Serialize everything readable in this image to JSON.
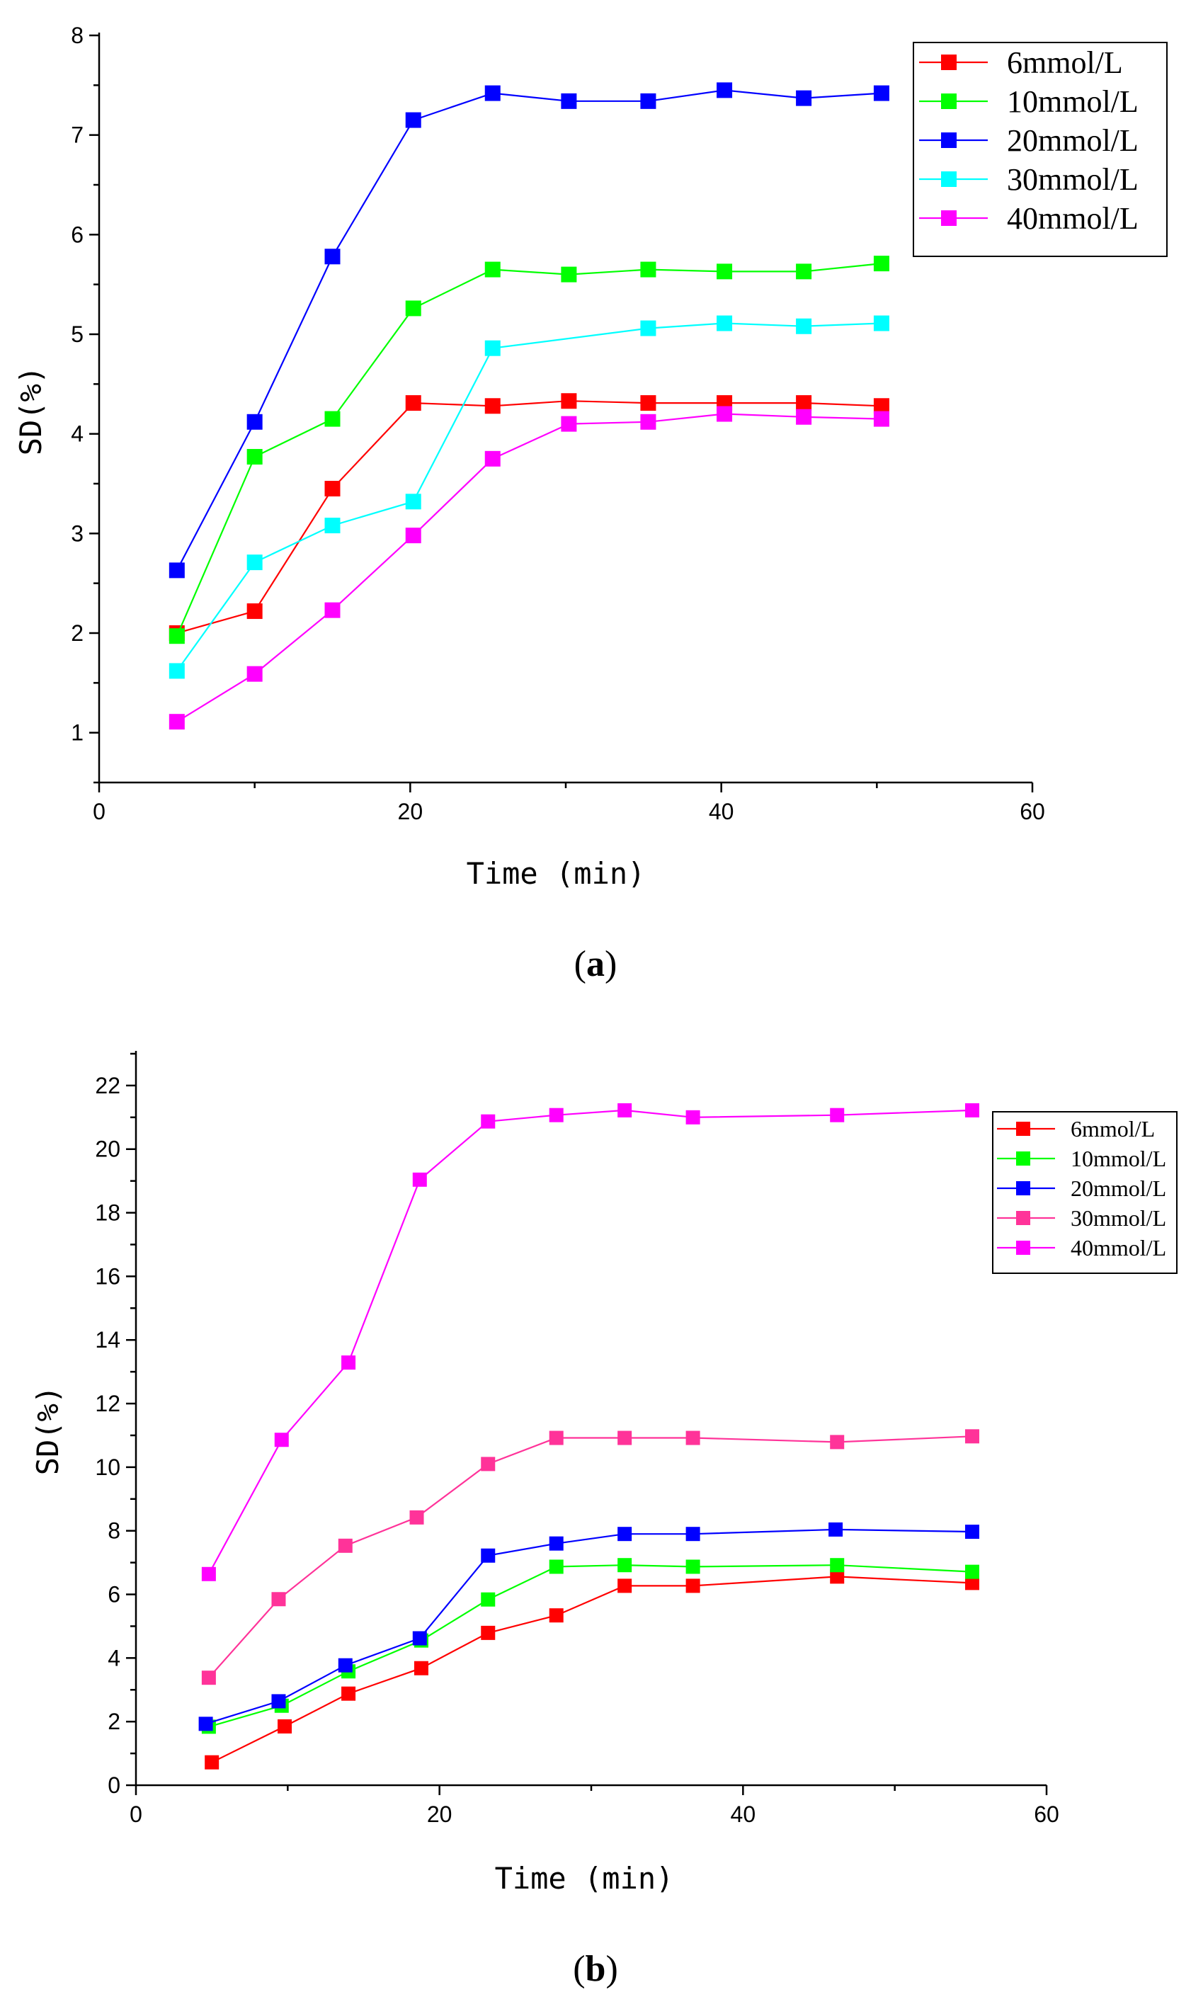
{
  "chart_data": [
    {
      "panel": "a",
      "caption_open": "(",
      "caption_letter": "a",
      "caption_close": ")",
      "type": "line",
      "title": "",
      "xlabel": "Time  (min)",
      "ylabel": "SD(%)",
      "xlim": [
        0,
        60
      ],
      "ylim": [
        0.5,
        8
      ],
      "xticks": [
        0,
        20,
        40,
        60
      ],
      "yticks": [
        1,
        2,
        3,
        4,
        5,
        6,
        7,
        8
      ],
      "legend_position": "top-right",
      "series": [
        {
          "name": "6mmol/L",
          "color": "#ff0000",
          "x": [
            5,
            10,
            15,
            20.2,
            25.3,
            30.2,
            35.3,
            40.2,
            45.3,
            50.3
          ],
          "y": [
            2.0,
            2.22,
            3.45,
            4.31,
            4.28,
            4.33,
            4.31,
            4.31,
            4.31,
            4.28
          ]
        },
        {
          "name": "10mmol/L",
          "color": "#00ff00",
          "x": [
            5,
            10,
            15,
            20.2,
            25.3,
            30.2,
            35.3,
            40.2,
            45.3,
            50.3
          ],
          "y": [
            1.97,
            3.77,
            4.15,
            5.26,
            5.65,
            5.6,
            5.65,
            5.63,
            5.63,
            5.71
          ]
        },
        {
          "name": "20mmol/L",
          "color": "#0000ff",
          "x": [
            5,
            10,
            15,
            20.2,
            25.3,
            30.2,
            35.3,
            40.2,
            45.3,
            50.3
          ],
          "y": [
            2.63,
            4.12,
            5.78,
            7.15,
            7.42,
            7.34,
            7.34,
            7.45,
            7.37,
            7.42
          ]
        },
        {
          "name": "30mmol/L",
          "color": "#00ffff",
          "x": [
            5,
            10,
            15,
            20.2,
            25.3,
            35.3,
            40.2,
            45.3,
            50.3
          ],
          "y": [
            1.62,
            2.71,
            3.08,
            3.32,
            4.86,
            5.06,
            5.11,
            5.08,
            5.11
          ]
        },
        {
          "name": "40mmol/L",
          "color": "#ff00ff",
          "x": [
            5,
            10,
            15,
            20.2,
            25.3,
            30.2,
            35.3,
            40.2,
            45.3,
            50.3
          ],
          "y": [
            1.11,
            1.59,
            2.23,
            2.98,
            3.75,
            4.1,
            4.12,
            4.2,
            4.17,
            4.15
          ]
        }
      ]
    },
    {
      "panel": "b",
      "caption_open": "(",
      "caption_letter": "b",
      "caption_close": ")",
      "type": "line",
      "title": "",
      "xlabel": "Time  (min)",
      "ylabel": "SD(%)",
      "xlim": [
        0,
        60
      ],
      "ylim": [
        0,
        23
      ],
      "xticks": [
        0,
        20,
        40,
        60
      ],
      "yticks": [
        0,
        2,
        4,
        6,
        8,
        10,
        12,
        14,
        16,
        18,
        20,
        22
      ],
      "legend_position": "top-right",
      "series": [
        {
          "name": "6mmol/L",
          "color": "#ff0000",
          "x": [
            5,
            9.8,
            14,
            18.8,
            23.2,
            27.7,
            32.2,
            36.7,
            46.2,
            55.1
          ],
          "y": [
            0.72,
            1.85,
            2.88,
            3.68,
            4.79,
            5.34,
            6.27,
            6.27,
            6.56,
            6.36
          ]
        },
        {
          "name": "10mmol/L",
          "color": "#00ff00",
          "x": [
            4.8,
            9.6,
            14,
            18.8,
            23.2,
            27.7,
            32.2,
            36.7,
            46.2,
            55.1
          ],
          "y": [
            1.84,
            2.5,
            3.58,
            4.55,
            5.84,
            6.87,
            6.92,
            6.87,
            6.92,
            6.71
          ]
        },
        {
          "name": "20mmol/L",
          "color": "#0000ff",
          "x": [
            4.6,
            9.4,
            13.8,
            18.7,
            23.2,
            27.7,
            32.2,
            36.7,
            46.1,
            55.1
          ],
          "y": [
            1.93,
            2.64,
            3.77,
            4.62,
            7.22,
            7.6,
            7.9,
            7.9,
            8.04,
            7.97
          ]
        },
        {
          "name": "30mmol/L",
          "color": "#ff3399",
          "x": [
            4.8,
            9.4,
            13.8,
            18.5,
            23.2,
            27.7,
            32.2,
            36.7,
            46.2,
            55.1
          ],
          "y": [
            3.38,
            5.85,
            7.53,
            8.42,
            10.1,
            10.92,
            10.92,
            10.92,
            10.79,
            10.97
          ]
        },
        {
          "name": "40mmol/L",
          "color": "#ff00ff",
          "x": [
            4.8,
            9.6,
            14,
            18.7,
            23.2,
            27.7,
            32.2,
            36.7,
            46.2,
            55.1
          ],
          "y": [
            6.64,
            10.86,
            13.29,
            19.04,
            20.87,
            21.07,
            21.22,
            21.0,
            21.07,
            21.22
          ]
        }
      ]
    }
  ]
}
